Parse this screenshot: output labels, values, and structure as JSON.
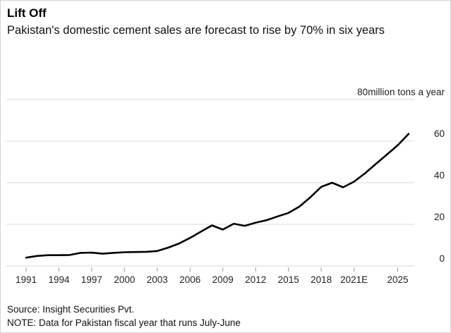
{
  "footer": {
    "source": "Source: Insight Securities Pvt.",
    "note": "NOTE: Data for Pakistan fiscal year that runs July-June"
  },
  "chart_data": {
    "type": "line",
    "title": "Lift Off",
    "subtitle": "Pakistan's domestic cement sales are forecast to rise by 70% in six years",
    "x": [
      1991,
      1992,
      1993,
      1994,
      1995,
      1996,
      1997,
      1998,
      1999,
      2000,
      2001,
      2002,
      2003,
      2004,
      2005,
      2006,
      2007,
      2008,
      2009,
      2010,
      2011,
      2012,
      2013,
      2014,
      2015,
      2016,
      2017,
      2018,
      2019,
      2020,
      2021,
      2022,
      2023,
      2024,
      2025,
      2026
    ],
    "values": [
      4.0,
      4.8,
      5.2,
      5.2,
      5.3,
      6.3,
      6.4,
      5.9,
      6.3,
      6.6,
      6.7,
      6.8,
      7.2,
      8.8,
      10.8,
      13.5,
      16.5,
      19.5,
      17.5,
      20.3,
      19.3,
      20.8,
      22.0,
      23.8,
      25.5,
      28.5,
      33.0,
      38.0,
      40.0,
      37.8,
      40.5,
      44.5,
      49.0,
      53.5,
      58.0,
      63.5
    ],
    "ylabel": "million tons a year",
    "ylim": [
      0,
      80
    ],
    "xlim": [
      1991,
      2026
    ],
    "yticks": [
      0,
      20,
      40,
      60,
      80
    ],
    "ytick_unit_suffix": "million tons a year",
    "xticks": [
      {
        "year": 1991,
        "label": "1991"
      },
      {
        "year": 1994,
        "label": "1994"
      },
      {
        "year": 1997,
        "label": "1997"
      },
      {
        "year": 2000,
        "label": "2000"
      },
      {
        "year": 2003,
        "label": "2003"
      },
      {
        "year": 2006,
        "label": "2006"
      },
      {
        "year": 2009,
        "label": "2009"
      },
      {
        "year": 2012,
        "label": "2012"
      },
      {
        "year": 2015,
        "label": "2015"
      },
      {
        "year": 2018,
        "label": "2018"
      },
      {
        "year": 2021,
        "label": "2021E"
      },
      {
        "year": 2025,
        "label": "2025"
      }
    ],
    "grid": true,
    "legend": "none",
    "line_color": "#000000",
    "grid_color": "#d9d9d9",
    "tick_color": "#999999",
    "label_color": "#222222"
  }
}
